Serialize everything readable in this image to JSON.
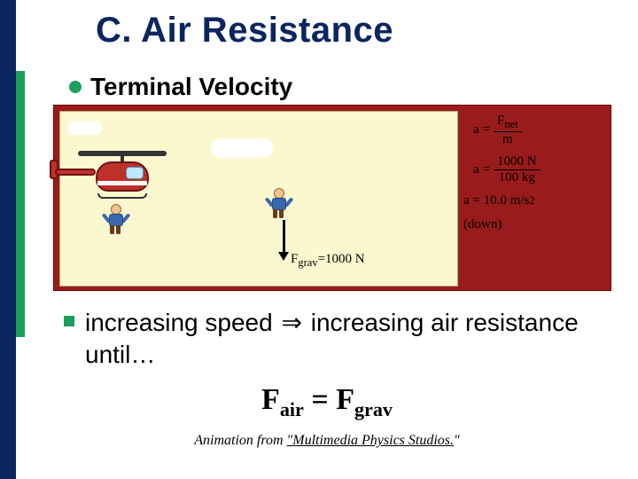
{
  "title": {
    "text": "C. Air Resistance",
    "fontsize": 40
  },
  "bullet1": {
    "text": "Terminal Velocity",
    "fontsize": 28
  },
  "figure": {
    "frame_color": "#9a1b1b",
    "panel_color": "#fbf7cf",
    "force": {
      "label": "F",
      "sub": "grav",
      "value": "=1000 N",
      "fontsize": 15
    },
    "equations": {
      "fontsize": 15,
      "eq1": {
        "lhs": "a =",
        "num": "F",
        "num_sub": "net",
        "den": "m"
      },
      "eq2": {
        "lhs": "a =",
        "num": "1000 N",
        "den": "100 kg"
      },
      "eq3": {
        "text": "a = 10.0 m/s",
        "sup": "2"
      },
      "eq4": {
        "text": "(down)"
      }
    }
  },
  "bullet2": {
    "pre": "increasing speed ",
    "implies": "⇒",
    "post": " increasing air resistance until…",
    "fontsize": 28
  },
  "equation": {
    "lhs_base": "F",
    "lhs_sub": "air",
    "eq": " = ",
    "rhs_base": "F",
    "rhs_sub": "grav",
    "fontsize": 34
  },
  "credit": {
    "pre": "Animation from ",
    "src": "\"Multimedia Physics Studios.",
    "post": "\"",
    "fontsize": 16
  },
  "colors": {
    "background": "#0a2560",
    "slide": "#ffffff",
    "accent": "#1aa05a",
    "heli": "#c0302a"
  }
}
